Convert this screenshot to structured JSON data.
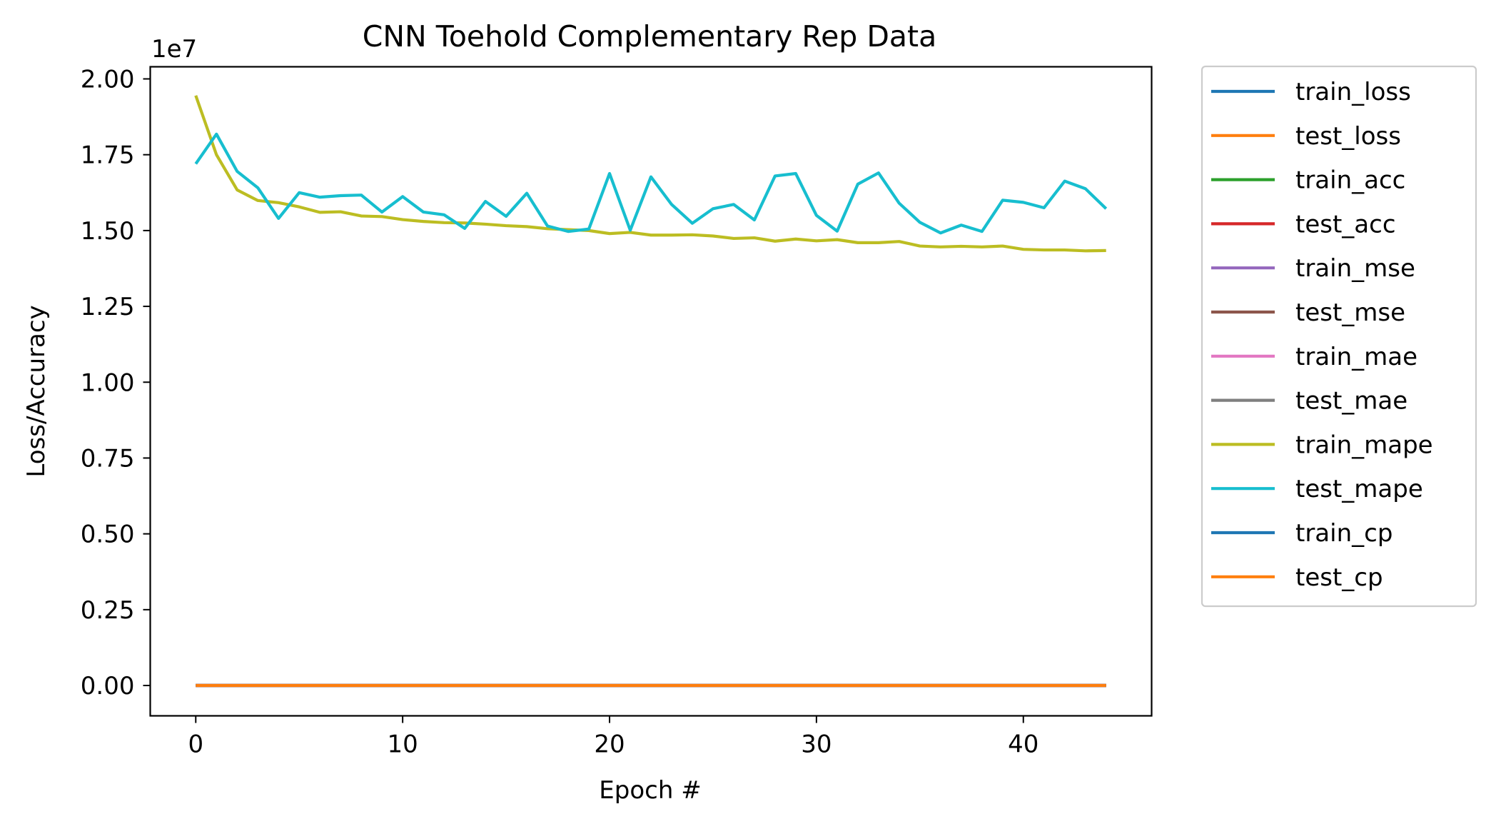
{
  "chart_data": {
    "type": "line",
    "title": "CNN Toehold Complementary Rep Data",
    "xlabel": "Epoch #",
    "ylabel": "Loss/Accuracy",
    "y_offset_label": "1e7",
    "xlim": [
      -2.2,
      46.2
    ],
    "ylim": [
      -0.1,
      2.04
    ],
    "y_unit_scale": 10000000,
    "xticks": [
      0,
      10,
      20,
      30,
      40
    ],
    "xtick_labels": [
      "0",
      "10",
      "20",
      "30",
      "40"
    ],
    "yticks": [
      0,
      0.25,
      0.5,
      0.75,
      1.0,
      1.25,
      1.5,
      1.75,
      2.0
    ],
    "ytick_labels": [
      "0.00",
      "0.25",
      "0.50",
      "0.75",
      "1.00",
      "1.25",
      "1.50",
      "1.75",
      "2.00"
    ],
    "legend_position": "outside upper right",
    "grid": false,
    "x": [
      0,
      1,
      2,
      3,
      4,
      5,
      6,
      7,
      8,
      9,
      10,
      11,
      12,
      13,
      14,
      15,
      16,
      17,
      18,
      19,
      20,
      21,
      22,
      23,
      24,
      25,
      26,
      27,
      28,
      29,
      30,
      31,
      32,
      33,
      34,
      35,
      36,
      37,
      38,
      39,
      40,
      41,
      42,
      43,
      44
    ],
    "series": [
      {
        "name": "train_loss",
        "color": "#1f77b4",
        "values": [
          0,
          0,
          0,
          0,
          0,
          0,
          0,
          0,
          0,
          0,
          0,
          0,
          0,
          0,
          0,
          0,
          0,
          0,
          0,
          0,
          0,
          0,
          0,
          0,
          0,
          0,
          0,
          0,
          0,
          0,
          0,
          0,
          0,
          0,
          0,
          0,
          0,
          0,
          0,
          0,
          0,
          0,
          0,
          0,
          0
        ]
      },
      {
        "name": "test_loss",
        "color": "#ff7f0e",
        "values": [
          0,
          0,
          0,
          0,
          0,
          0,
          0,
          0,
          0,
          0,
          0,
          0,
          0,
          0,
          0,
          0,
          0,
          0,
          0,
          0,
          0,
          0,
          0,
          0,
          0,
          0,
          0,
          0,
          0,
          0,
          0,
          0,
          0,
          0,
          0,
          0,
          0,
          0,
          0,
          0,
          0,
          0,
          0,
          0,
          0
        ]
      },
      {
        "name": "train_acc",
        "color": "#2ca02c",
        "values": [
          0,
          0,
          0,
          0,
          0,
          0,
          0,
          0,
          0,
          0,
          0,
          0,
          0,
          0,
          0,
          0,
          0,
          0,
          0,
          0,
          0,
          0,
          0,
          0,
          0,
          0,
          0,
          0,
          0,
          0,
          0,
          0,
          0,
          0,
          0,
          0,
          0,
          0,
          0,
          0,
          0,
          0,
          0,
          0,
          0
        ]
      },
      {
        "name": "test_acc",
        "color": "#d62728",
        "values": [
          0,
          0,
          0,
          0,
          0,
          0,
          0,
          0,
          0,
          0,
          0,
          0,
          0,
          0,
          0,
          0,
          0,
          0,
          0,
          0,
          0,
          0,
          0,
          0,
          0,
          0,
          0,
          0,
          0,
          0,
          0,
          0,
          0,
          0,
          0,
          0,
          0,
          0,
          0,
          0,
          0,
          0,
          0,
          0,
          0
        ]
      },
      {
        "name": "train_mse",
        "color": "#9467bd",
        "values": [
          0,
          0,
          0,
          0,
          0,
          0,
          0,
          0,
          0,
          0,
          0,
          0,
          0,
          0,
          0,
          0,
          0,
          0,
          0,
          0,
          0,
          0,
          0,
          0,
          0,
          0,
          0,
          0,
          0,
          0,
          0,
          0,
          0,
          0,
          0,
          0,
          0,
          0,
          0,
          0,
          0,
          0,
          0,
          0,
          0
        ]
      },
      {
        "name": "test_mse",
        "color": "#8c564b",
        "values": [
          0,
          0,
          0,
          0,
          0,
          0,
          0,
          0,
          0,
          0,
          0,
          0,
          0,
          0,
          0,
          0,
          0,
          0,
          0,
          0,
          0,
          0,
          0,
          0,
          0,
          0,
          0,
          0,
          0,
          0,
          0,
          0,
          0,
          0,
          0,
          0,
          0,
          0,
          0,
          0,
          0,
          0,
          0,
          0,
          0
        ]
      },
      {
        "name": "train_mae",
        "color": "#e377c2",
        "values": [
          0,
          0,
          0,
          0,
          0,
          0,
          0,
          0,
          0,
          0,
          0,
          0,
          0,
          0,
          0,
          0,
          0,
          0,
          0,
          0,
          0,
          0,
          0,
          0,
          0,
          0,
          0,
          0,
          0,
          0,
          0,
          0,
          0,
          0,
          0,
          0,
          0,
          0,
          0,
          0,
          0,
          0,
          0,
          0,
          0
        ]
      },
      {
        "name": "test_mae",
        "color": "#7f7f7f",
        "values": [
          0,
          0,
          0,
          0,
          0,
          0,
          0,
          0,
          0,
          0,
          0,
          0,
          0,
          0,
          0,
          0,
          0,
          0,
          0,
          0,
          0,
          0,
          0,
          0,
          0,
          0,
          0,
          0,
          0,
          0,
          0,
          0,
          0,
          0,
          0,
          0,
          0,
          0,
          0,
          0,
          0,
          0,
          0,
          0,
          0
        ]
      },
      {
        "name": "train_mape",
        "color": "#bcbd22",
        "values": [
          1.945,
          1.75,
          1.634,
          1.599,
          1.592,
          1.578,
          1.56,
          1.562,
          1.548,
          1.546,
          1.536,
          1.53,
          1.526,
          1.525,
          1.521,
          1.516,
          1.513,
          1.506,
          1.503,
          1.5,
          1.49,
          1.494,
          1.485,
          1.485,
          1.486,
          1.482,
          1.474,
          1.476,
          1.465,
          1.472,
          1.466,
          1.47,
          1.46,
          1.46,
          1.464,
          1.449,
          1.446,
          1.448,
          1.446,
          1.449,
          1.438,
          1.436,
          1.436,
          1.433,
          1.434
        ]
      },
      {
        "name": "test_mape",
        "color": "#17becf",
        "values": [
          1.72,
          1.818,
          1.695,
          1.641,
          1.54,
          1.625,
          1.61,
          1.615,
          1.617,
          1.561,
          1.612,
          1.561,
          1.552,
          1.507,
          1.596,
          1.547,
          1.623,
          1.515,
          1.497,
          1.505,
          1.688,
          1.501,
          1.677,
          1.586,
          1.524,
          1.572,
          1.586,
          1.535,
          1.68,
          1.688,
          1.55,
          1.498,
          1.653,
          1.69,
          1.59,
          1.527,
          1.492,
          1.518,
          1.497,
          1.6,
          1.593,
          1.575,
          1.663,
          1.638,
          1.572
        ]
      },
      {
        "name": "train_cp",
        "color": "#1f77b4",
        "values": [
          0,
          0,
          0,
          0,
          0,
          0,
          0,
          0,
          0,
          0,
          0,
          0,
          0,
          0,
          0,
          0,
          0,
          0,
          0,
          0,
          0,
          0,
          0,
          0,
          0,
          0,
          0,
          0,
          0,
          0,
          0,
          0,
          0,
          0,
          0,
          0,
          0,
          0,
          0,
          0,
          0,
          0,
          0,
          0,
          0
        ]
      },
      {
        "name": "test_cp",
        "color": "#ff7f0e",
        "values": [
          0,
          0,
          0,
          0,
          0,
          0,
          0,
          0,
          0,
          0,
          0,
          0,
          0,
          0,
          0,
          0,
          0,
          0,
          0,
          0,
          0,
          0,
          0,
          0,
          0,
          0,
          0,
          0,
          0,
          0,
          0,
          0,
          0,
          0,
          0,
          0,
          0,
          0,
          0,
          0,
          0,
          0,
          0,
          0,
          0
        ]
      }
    ]
  }
}
